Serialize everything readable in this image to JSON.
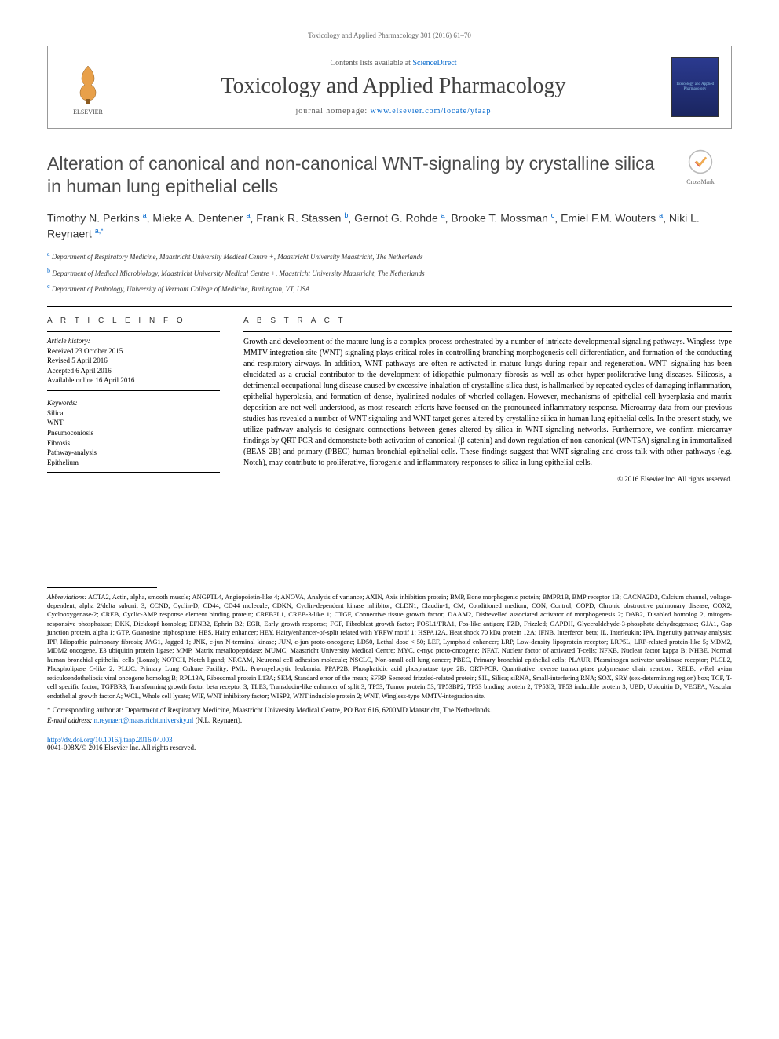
{
  "journal_ref": "Toxicology and Applied Pharmacology 301 (2016) 61–70",
  "header": {
    "contents_prefix": "Contents lists available at ",
    "contents_link": "ScienceDirect",
    "journal_title": "Toxicology and Applied Pharmacology",
    "homepage_prefix": "journal homepage: ",
    "homepage_link": "www.elsevier.com/locate/ytaap",
    "publisher": "ELSEVIER",
    "cover_text": "Toxicology and Applied Pharmacology"
  },
  "crossmark_label": "CrossMark",
  "title": "Alteration of canonical and non-canonical WNT-signaling by crystalline silica in human lung epithelial cells",
  "authors_html": "Timothy N. Perkins <sup>a</sup>, Mieke A. Dentener <sup>a</sup>, Frank R. Stassen <sup>b</sup>, Gernot G. Rohde <sup>a</sup>, Brooke T. Mossman <sup>c</sup>, Emiel F.M. Wouters <sup>a</sup>, Niki L. Reynaert <sup>a,*</sup>",
  "affiliations": [
    {
      "sup": "a",
      "text": "Department of Respiratory Medicine, Maastricht University Medical Centre +, Maastricht University Maastricht, The Netherlands"
    },
    {
      "sup": "b",
      "text": "Department of Medical Microbiology, Maastricht University Medical Centre +, Maastricht University Maastricht, The Netherlands"
    },
    {
      "sup": "c",
      "text": "Department of Pathology, University of Vermont College of Medicine, Burlington, VT, USA"
    }
  ],
  "article_info": {
    "heading": "A R T I C L E   I N F O",
    "history_label": "Article history:",
    "history": [
      "Received 23 October 2015",
      "Revised 5 April 2016",
      "Accepted 6 April 2016",
      "Available online 16 April 2016"
    ],
    "keywords_label": "Keywords:",
    "keywords": [
      "Silica",
      "WNT",
      "Pneumoconiosis",
      "Fibrosis",
      "Pathway-analysis",
      "Epithelium"
    ]
  },
  "abstract": {
    "heading": "A B S T R A C T",
    "text": "Growth and development of the mature lung is a complex process orchestrated by a number of intricate developmental signaling pathways. Wingless-type MMTV-integration site (WNT) signaling plays critical roles in controlling branching morphogenesis cell differentiation, and formation of the conducting and respiratory airways. In addition, WNT pathways are often re-activated in mature lungs during repair and regeneration. WNT- signaling has been elucidated as a crucial contributor to the development of idiopathic pulmonary fibrosis as well as other hyper-proliferative lung diseases. Silicosis, a detrimental occupational lung disease caused by excessive inhalation of crystalline silica dust, is hallmarked by repeated cycles of damaging inflammation, epithelial hyperplasia, and formation of dense, hyalinized nodules of whorled collagen. However, mechanisms of epithelial cell hyperplasia and matrix deposition are not well understood, as most research efforts have focused on the pronounced inflammatory response. Microarray data from our previous studies has revealed a number of WNT-signaling and WNT-target genes altered by crystalline silica in human lung epithelial cells. In the present study, we utilize pathway analysis to designate connections between genes altered by silica in WNT-signaling networks. Furthermore, we confirm microarray findings by QRT-PCR and demonstrate both activation of canonical (β-catenin) and down-regulation of non-canonical (WNT5A) signaling in immortalized (BEAS-2B) and primary (PBEC) human bronchial epithelial cells. These findings suggest that WNT-signaling and cross-talk with other pathways (e.g. Notch), may contribute to proliferative, fibrogenic and inflammatory responses to silica in lung epithelial cells.",
    "copyright": "© 2016 Elsevier Inc. All rights reserved."
  },
  "abbreviations": {
    "label": "Abbreviations:",
    "text": "ACTA2, Actin, alpha, smooth muscle; ANGPTL4, Angiopoietin-like 4; ANOVA, Analysis of variance; AXIN, Axis inhibition protein; BMP, Bone morphogenic protein; BMPR1B, BMP receptor 1B; CACNA2D3, Calcium channel, voltage-dependent, alpha 2/delta subunit 3; CCND, Cyclin-D; CD44, CD44 molecule; CDKN, Cyclin-dependent kinase inhibitor; CLDN1, Claudin-1; CM, Conditioned medium; CON, Control; COPD, Chronic obstructive pulmonary disease; COX2, Cyclooxygenase-2; CREB, Cyclic-AMP response element binding protein; CREB3L1, CREB-3-like 1; CTGF, Connective tissue growth factor; DAAM2, Dishevelled associated activator of morphogenesis 2; DAB2, Disabled homolog 2, mitogen-responsive phosphatase; DKK, Dickkopf homolog; EFNB2, Ephrin B2; EGR, Early growth response; FGF, Fibroblast growth factor; FOSL1/FRA1, Fos-like antigen; FZD, Frizzled; GAPDH, Glyceraldehyde-3-phosphate dehydrogenase; GJA1, Gap junction protein, alpha 1; GTP, Guanosine triphosphate; HES, Hairy enhancer; HEY, Hairy/enhancer-of-split related with YRPW motif 1; HSPA12A, Heat shock 70 kDa protein 12A; IFNB, Interferon beta; IL, Interleukin; IPA, Ingenuity pathway analysis; IPF, Idiopathic pulmonary fibrosis; JAG1, Jagged 1; JNK, c-jun N-terminal kinase; JUN, c-jun proto-oncogene; LD50, Lethal dose < 50; LEF, Lymphoid enhancer; LRP, Low-density lipoprotein receptor; LRP5L, LRP-related protein-like 5; MDM2, MDM2 oncogene, E3 ubiquitin protein ligase; MMP, Matrix metallopeptidase; MUMC, Maastricht University Medical Centre; MYC, c-myc proto-oncogene; NFAT, Nuclear factor of activated T-cells; NFKB, Nuclear factor kappa B; NHBE, Normal human bronchial epithelial cells (Lonza); NOTCH, Notch ligand; NRCAM, Neuronal cell adhesion molecule; NSCLC, Non-small cell lung cancer; PBEC, Primary bronchial epithelial cells; PLAUR, Plasminogen activator urokinase receptor; PLCL2, Phospholipase C-like 2; PLUC, Primary Lung Culture Facility; PML, Pro-myelocytic leukemia; PPAP2B, Phosphatidic acid phosphatase type 2B; QRT-PCR, Quantitative reverse transcriptase polymerase chain reaction; RELB, v-Rel avian reticuloendotheliosis viral oncogene homolog B; RPL13A, Ribosomal protein L13A; SEM, Standard error of the mean; SFRP, Secreted frizzled-related protein; SIL, Silica; siRNA, Small-interfering RNA; SOX, SRY (sex-determining region) box; TCF, T-cell specific factor; TGFBR3, Transforming growth factor beta receptor 3; TLE3, Transducin-like enhancer of split 3; TP53, Tumor protein 53; TP53BP2, TP53 binding protein 2; TP53I3, TP53 inducible protein 3; UBD, Ubiquitin D; VEGFA, Vascular endothelial growth factor A; WCL, Whole cell lysate; WIF, WNT inhibitory factor; WISP2, WNT inducible protein 2; WNT, Wingless-type MMTV-integration site."
  },
  "corresponding": {
    "marker": "*",
    "label": "Corresponding author at: ",
    "address": "Department of Respiratory Medicine, Maastricht University Medical Centre, PO Box 616, 6200MD Maastricht, The Netherlands.",
    "email_label": "E-mail address: ",
    "email": "n.reynaert@maastrichtuniversity.nl",
    "email_suffix": " (N.L. Reynaert)."
  },
  "footer": {
    "doi": "http://dx.doi.org/10.1016/j.taap.2016.04.003",
    "issn": "0041-008X/© 2016 Elsevier Inc. All rights reserved."
  },
  "colors": {
    "link": "#0066cc",
    "text": "#000000",
    "heading": "#4a4a4a",
    "border": "#999999",
    "cover_bg_top": "#2b3a8f",
    "cover_bg_bottom": "#1a2560"
  },
  "fonts": {
    "body": "Georgia, Times New Roman, serif",
    "sans": "Arial, Helvetica, sans-serif",
    "title_size_pt": 23,
    "journal_title_size_pt": 28,
    "abstract_size_pt": 10,
    "abbrev_size_pt": 8.5
  }
}
